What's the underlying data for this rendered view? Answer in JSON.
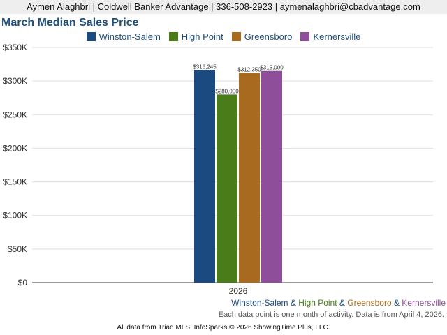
{
  "header": {
    "text": "Aymen Alaghbri | Coldwell Banker Advantage | 336-508-2923 | aymenalaghbri@cbadvantage.com"
  },
  "chart_data": {
    "type": "bar",
    "title": "March Median Sales Price",
    "categories": [
      "2026"
    ],
    "series": [
      {
        "name": "Winston-Salem",
        "values": [
          316245
        ],
        "label": "$316,245",
        "color": "#1a4a80"
      },
      {
        "name": "High Point",
        "values": [
          280000
        ],
        "label": "$280,000",
        "color": "#4a7d1a"
      },
      {
        "name": "Greensboro",
        "values": [
          312350
        ],
        "label": "$312,350",
        "color": "#a86a1e"
      },
      {
        "name": "Kernersville",
        "values": [
          315000
        ],
        "label": "$315,000",
        "color": "#8e4e9a"
      }
    ],
    "ylim": [
      0,
      350000
    ],
    "yticks": [
      0,
      50000,
      100000,
      150000,
      200000,
      250000,
      300000,
      350000
    ],
    "ytick_labels": [
      "$0",
      "$50K",
      "$100K",
      "$150K",
      "$200K",
      "$250K",
      "$300K",
      "$350K"
    ],
    "grid": true,
    "legend_position": "top"
  },
  "caption": {
    "parts": [
      {
        "text": "Winston-Salem",
        "color": "#1a4a80"
      },
      {
        "text": " & ",
        "color": "#1f4e79"
      },
      {
        "text": "High Point",
        "color": "#4a7d1a"
      },
      {
        "text": " & ",
        "color": "#1f4e79"
      },
      {
        "text": "Greensboro",
        "color": "#a86a1e"
      },
      {
        "text": " & ",
        "color": "#1f4e79"
      },
      {
        "text": "Kernersville",
        "color": "#8e4e9a"
      }
    ]
  },
  "note": "Each data point is one month of activity. Data is from April 4, 2026.",
  "footer": "All data from Triad MLS. InfoSparks © 2026 ShowingTime Plus, LLC."
}
